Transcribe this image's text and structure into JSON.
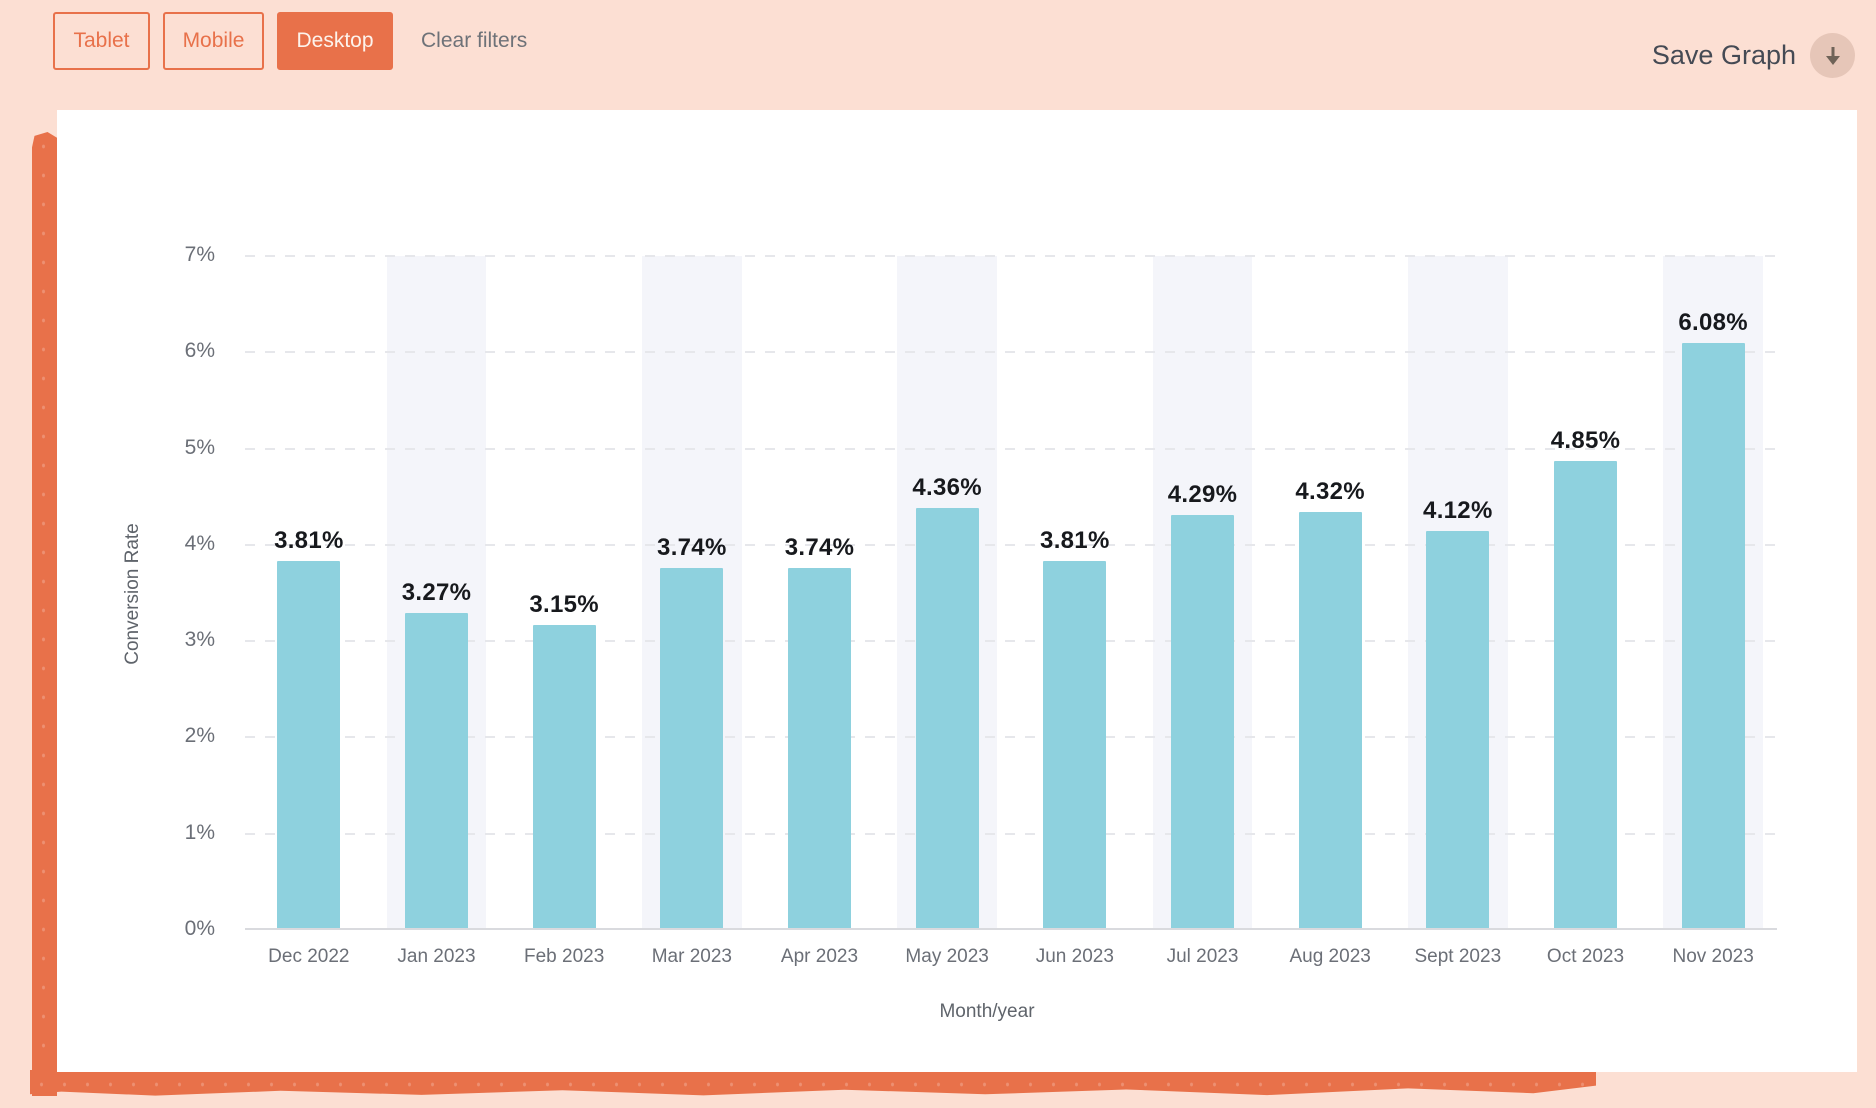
{
  "header": {
    "filters": [
      {
        "label": "Tablet",
        "active": false
      },
      {
        "label": "Mobile",
        "active": false
      },
      {
        "label": "Desktop",
        "active": true
      }
    ],
    "clear_filters_label": "Clear filters",
    "save_graph_label": "Save Graph",
    "download_icon": "download-arrow-icon"
  },
  "colors": {
    "accent_orange": "#e8714a",
    "page_background": "#fcdfd3",
    "bar_fill": "#8ed1de",
    "column_band": "#f4f5fa",
    "axis_text": "#6b6f77",
    "value_text": "#17191d"
  },
  "chart_data": {
    "type": "bar",
    "title": "",
    "xlabel": "Month/year",
    "ylabel": "Conversion Rate",
    "categories": [
      "Dec 2022",
      "Jan 2023",
      "Feb 2023",
      "Mar 2023",
      "Apr 2023",
      "May 2023",
      "Jun 2023",
      "Jul 2023",
      "Aug 2023",
      "Sept 2023",
      "Oct 2023",
      "Nov 2023"
    ],
    "values": [
      3.81,
      3.27,
      3.15,
      3.74,
      3.74,
      4.36,
      3.81,
      4.29,
      4.32,
      4.12,
      4.85,
      6.08
    ],
    "value_labels": [
      "3.81%",
      "3.27%",
      "3.15%",
      "3.74%",
      "3.74%",
      "4.36%",
      "3.81%",
      "4.29%",
      "4.32%",
      "4.12%",
      "4.85%",
      "6.08%"
    ],
    "ylim": [
      0,
      7
    ],
    "ytick_labels": [
      "7%",
      "6%",
      "5%",
      "4%",
      "3%",
      "2%",
      "1%",
      "0%"
    ],
    "grid": "horizontal-dashed",
    "legend": "none",
    "banded_categories": [
      "Jan 2023",
      "Mar 2023",
      "May 2023",
      "Jul 2023",
      "Sept 2023",
      "Nov 2023"
    ]
  }
}
